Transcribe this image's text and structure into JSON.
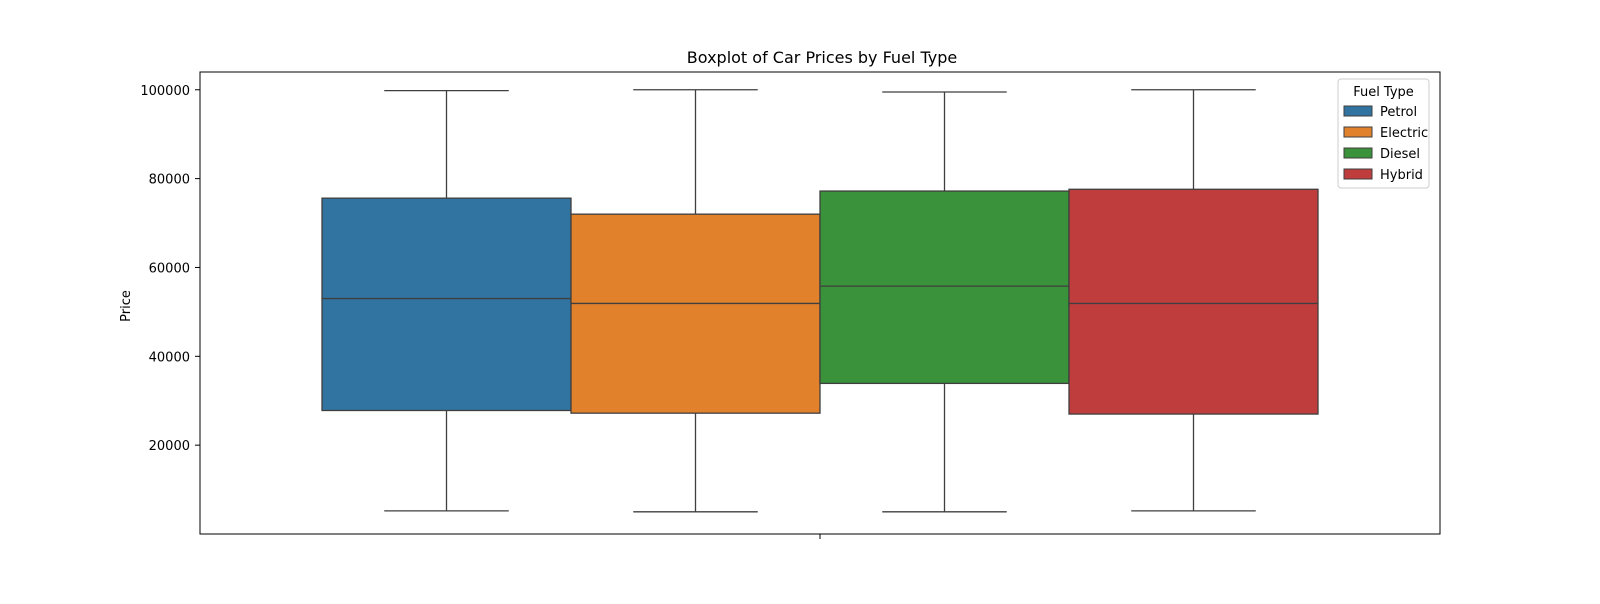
{
  "chart_data": {
    "type": "box",
    "title": "Boxplot of Car Prices by Fuel Type",
    "xlabel": "",
    "ylabel": "Price",
    "ylim": [
      0,
      104000
    ],
    "yticks": [
      20000,
      40000,
      60000,
      80000,
      100000
    ],
    "ytick_labels": [
      "20000",
      "40000",
      "60000",
      "80000",
      "100000"
    ],
    "grid": false,
    "legend": {
      "title": "Fuel Type",
      "position": "top-right"
    },
    "series": [
      {
        "name": "Petrol",
        "color": "#3274a1",
        "whisker_low": 5200,
        "q1": 27800,
        "median": 53000,
        "q3": 75600,
        "whisker_high": 99800
      },
      {
        "name": "Electric",
        "color": "#e1812c",
        "whisker_low": 5000,
        "q1": 27200,
        "median": 51900,
        "q3": 72000,
        "whisker_high": 100000
      },
      {
        "name": "Diesel",
        "color": "#3a923a",
        "whisker_low": 5000,
        "q1": 33900,
        "median": 55800,
        "q3": 77200,
        "whisker_high": 99500
      },
      {
        "name": "Hybrid",
        "color": "#c03d3e",
        "whisker_low": 5200,
        "q1": 27000,
        "median": 51900,
        "q3": 77600,
        "whisker_high": 100000
      }
    ]
  }
}
